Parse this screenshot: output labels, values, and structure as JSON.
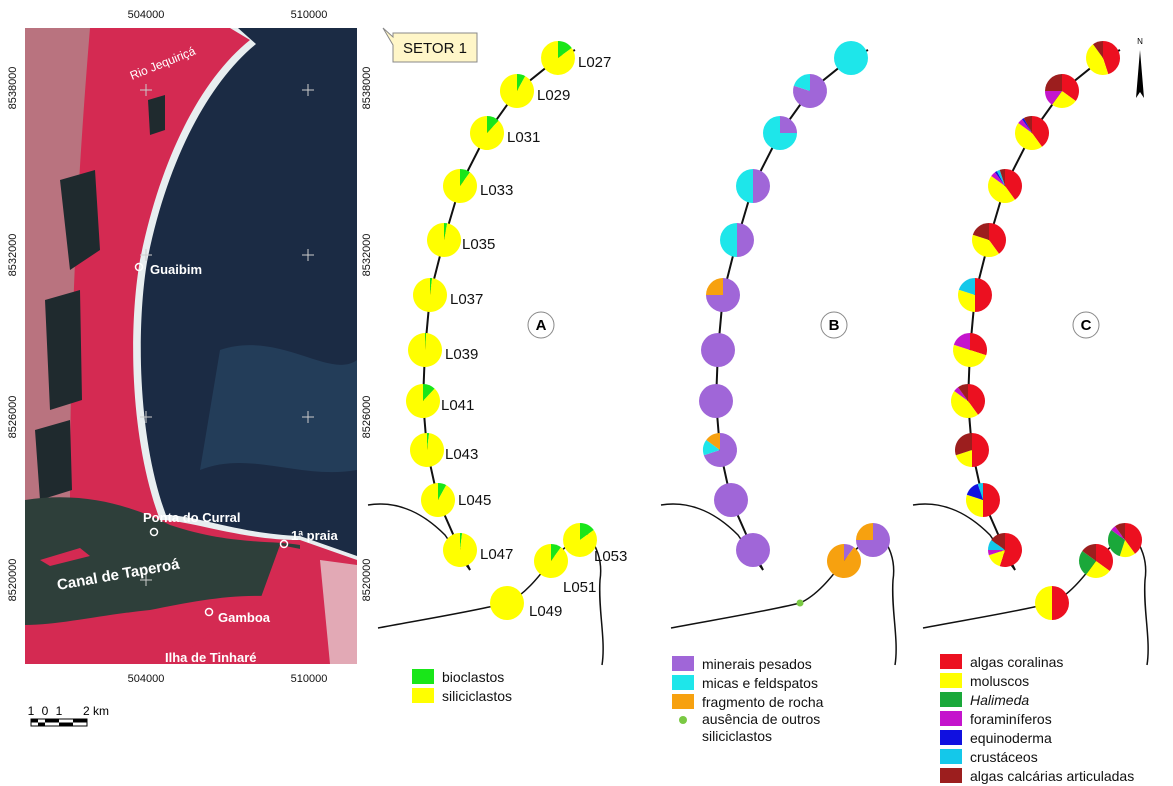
{
  "map": {
    "sector": "SETOR 1",
    "top_ticks": [
      "504000",
      "510000"
    ],
    "bottom_ticks": [
      "504000",
      "510000"
    ],
    "left_ticks": [
      "8538000",
      "8532000",
      "8526000",
      "8520000"
    ],
    "right_ticks": [
      "8538000",
      "8532000",
      "8526000",
      "8520000"
    ],
    "places": [
      "Rio Jequiriçá",
      "Guaibim",
      "Ponta do Curral",
      "1ª praia",
      "Canal de Taperoá",
      "Gamboa",
      "Ilha de Tinharé"
    ],
    "scale_labels": [
      "1",
      "0",
      "1",
      "2 km"
    ],
    "north": "N"
  },
  "stations": [
    "L027",
    "L029",
    "L031",
    "L033",
    "L035",
    "L037",
    "L039",
    "L041",
    "L043",
    "L045",
    "L047",
    "L049",
    "L051",
    "L053"
  ],
  "panels": [
    {
      "label": "A",
      "categories": [
        "bioclastos",
        "siliciclastos"
      ],
      "colors": [
        "#19e619",
        "#ffff00"
      ],
      "values": [
        [
          15,
          85
        ],
        [
          8,
          92
        ],
        [
          12,
          88
        ],
        [
          10,
          90
        ],
        [
          3,
          97
        ],
        [
          2,
          98
        ],
        [
          1,
          99
        ],
        [
          12,
          88
        ],
        [
          2,
          98
        ],
        [
          8,
          92
        ],
        [
          2,
          98
        ],
        [
          0,
          100
        ],
        [
          10,
          90
        ],
        [
          15,
          85
        ]
      ]
    },
    {
      "label": "B",
      "categories": [
        "minerais pesados",
        "micas e feldspatos",
        "fragmento de rocha",
        "ausência de outros siliciclastos"
      ],
      "colors": [
        "#a066d8",
        "#1ee6ea",
        "#f7a10f",
        "#7ac943"
      ],
      "values": [
        [
          0,
          100,
          0
        ],
        [
          80,
          20,
          0
        ],
        [
          25,
          75,
          0
        ],
        [
          50,
          50,
          0
        ],
        [
          50,
          50,
          0
        ],
        [
          75,
          0,
          25
        ],
        [
          100,
          0,
          0
        ],
        [
          100,
          0,
          0
        ],
        [
          70,
          15,
          15
        ],
        [
          100,
          0,
          0
        ],
        [
          100,
          0,
          0
        ],
        null,
        [
          10,
          0,
          90
        ],
        [
          75,
          0,
          25
        ]
      ]
    },
    {
      "label": "C",
      "categories": [
        "algas coralinas",
        "moluscos",
        "Halimeda",
        "foraminíferos",
        "equinoderma",
        "crustáceos",
        "algas calcárias articuladas"
      ],
      "colors": [
        "#ec1020",
        "#ffff00",
        "#1aa83a",
        "#c414cc",
        "#1010e0",
        "#14c8ea",
        "#9c1e1e"
      ],
      "values": [
        [
          45,
          45,
          0,
          0,
          0,
          0,
          10
        ],
        [
          35,
          25,
          0,
          15,
          0,
          0,
          25
        ],
        [
          40,
          45,
          0,
          5,
          2,
          0,
          8
        ],
        [
          40,
          45,
          0,
          5,
          2,
          3,
          5
        ],
        [
          40,
          40,
          0,
          0,
          0,
          0,
          20
        ],
        [
          50,
          30,
          0,
          0,
          0,
          20,
          0
        ],
        [
          30,
          50,
          0,
          20,
          0,
          0,
          0
        ],
        [
          40,
          45,
          0,
          5,
          0,
          0,
          10
        ],
        [
          50,
          20,
          0,
          0,
          0,
          0,
          30
        ],
        [
          50,
          30,
          0,
          0,
          15,
          5,
          0
        ],
        [
          55,
          15,
          0,
          5,
          0,
          10,
          15
        ],
        [
          50,
          50,
          0,
          0,
          0,
          0,
          0
        ],
        [
          35,
          25,
          25,
          0,
          0,
          0,
          15
        ],
        [
          40,
          15,
          30,
          5,
          0,
          0,
          10
        ]
      ]
    }
  ]
}
